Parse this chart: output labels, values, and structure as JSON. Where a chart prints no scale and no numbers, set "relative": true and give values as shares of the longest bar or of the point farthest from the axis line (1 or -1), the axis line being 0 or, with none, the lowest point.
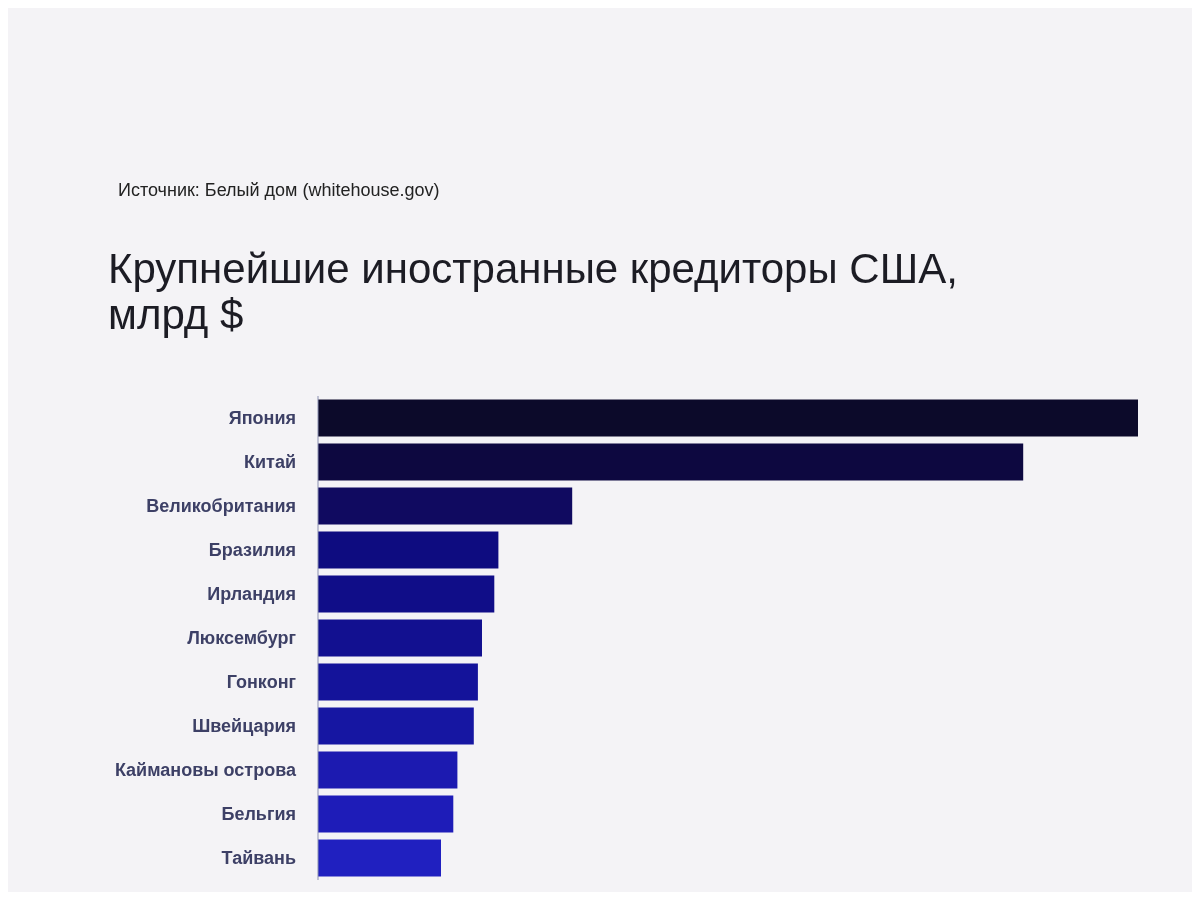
{
  "chart_data": {
    "type": "bar",
    "orientation": "horizontal",
    "relative": true,
    "title": "Крупнейшие иностранные кредиторы США, млрд $",
    "annotations": [
      "Источник: Белый дом (whitehouse.gov)"
    ],
    "categories": [
      "Япония",
      "Китай",
      "Великобритания",
      "Бразилия",
      "Ирландия",
      "Люксембург",
      "Гонконг",
      "Швейцария",
      "Каймановы острова",
      "Бельгия",
      "Тайвань"
    ],
    "values": [
      1,
      0.86,
      0.31,
      0.22,
      0.215,
      0.2,
      0.195,
      0.19,
      0.17,
      0.165,
      0.15
    ],
    "colors": [
      "#0c0a2a",
      "#0d0840",
      "#100a60",
      "#0e0c80",
      "#100d88",
      "#121090",
      "#14139a",
      "#1616a2",
      "#1c1ab0",
      "#1e1cb8",
      "#2020c0"
    ]
  }
}
